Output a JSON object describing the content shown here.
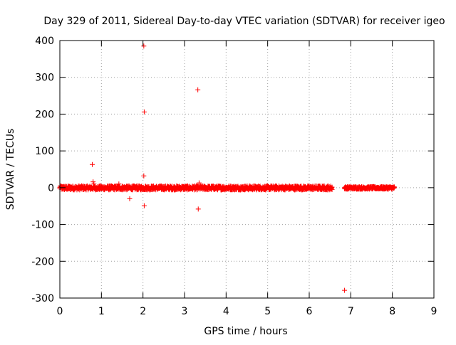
{
  "chart_data": {
    "type": "scatter",
    "title": "Day 329 of 2011, Sidereal Day-to-day VTEC variation (SDTVAR) for receiver igeo",
    "xlabel": "GPS time / hours",
    "ylabel": "SDTVAR / TECUs",
    "xlim": [
      0,
      9
    ],
    "ylim": [
      -300,
      400
    ],
    "xticks": [
      0,
      1,
      2,
      3,
      4,
      5,
      6,
      7,
      8,
      9
    ],
    "yticks": [
      -300,
      -200,
      -100,
      0,
      100,
      200,
      300,
      400
    ],
    "grid": true,
    "marker": "+",
    "color": "#ff0000",
    "series": [
      {
        "name": "SDTVAR",
        "dense_segments": [
          {
            "x_start": 0.0,
            "x_end": 6.55,
            "y_min": -6,
            "y_max": 5
          },
          {
            "x_start": 6.85,
            "x_end": 8.05,
            "y_min": -4,
            "y_max": 3
          }
        ],
        "outliers": [
          {
            "x": 0.78,
            "y": 63
          },
          {
            "x": 0.8,
            "y": 16
          },
          {
            "x": 0.82,
            "y": 10
          },
          {
            "x": 1.42,
            "y": 10
          },
          {
            "x": 1.68,
            "y": -30
          },
          {
            "x": 2.02,
            "y": 385
          },
          {
            "x": 2.03,
            "y": 206
          },
          {
            "x": 2.02,
            "y": 32
          },
          {
            "x": 2.03,
            "y": -49
          },
          {
            "x": 3.32,
            "y": 266
          },
          {
            "x": 3.35,
            "y": 13
          },
          {
            "x": 3.33,
            "y": -58
          },
          {
            "x": 6.85,
            "y": -279
          }
        ]
      }
    ]
  }
}
